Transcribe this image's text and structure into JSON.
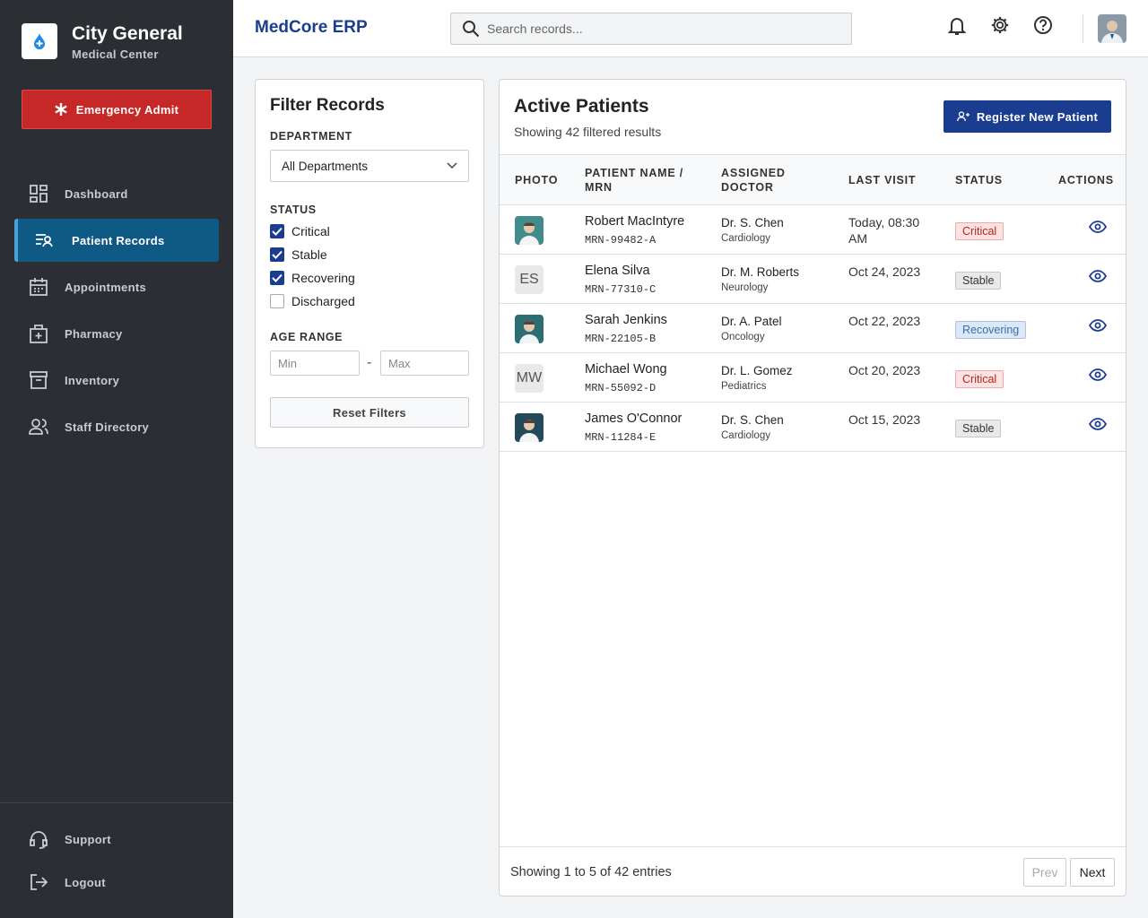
{
  "sidebar": {
    "brand_name": "City General",
    "brand_subtitle": "Medical Center",
    "emergency_button": "Emergency Admit",
    "nav": [
      {
        "label": "Dashboard",
        "active": false
      },
      {
        "label": "Patient Records",
        "active": true
      },
      {
        "label": "Appointments",
        "active": false
      },
      {
        "label": "Pharmacy",
        "active": false
      },
      {
        "label": "Inventory",
        "active": false
      },
      {
        "label": "Staff Directory",
        "active": false
      }
    ],
    "footer_nav": [
      "Support",
      "Logout"
    ]
  },
  "topbar": {
    "app_name": "MedCore ERP",
    "search_placeholder": "Search records..."
  },
  "filters": {
    "title": "Filter Records",
    "department_label": "DEPARTMENT",
    "department_value": "All Departments",
    "status_label": "STATUS",
    "statuses": [
      {
        "label": "Critical",
        "checked": true
      },
      {
        "label": "Stable",
        "checked": true
      },
      {
        "label": "Recovering",
        "checked": true
      },
      {
        "label": "Discharged",
        "checked": false
      }
    ],
    "age_label": "AGE RANGE",
    "age_min_placeholder": "Min",
    "age_separator": "-",
    "age_max_placeholder": "Max",
    "reset_button": "Reset Filters"
  },
  "patients": {
    "title": "Active Patients",
    "subtitle": "Showing 42 filtered results",
    "register_button": "Register New Patient",
    "columns": [
      "PHOTO",
      "PATIENT NAME / MRN",
      "ASSIGNED DOCTOR",
      "LAST VISIT",
      "STATUS",
      "ACTIONS"
    ],
    "rows": [
      {
        "photo_color": "#3f8c8a",
        "name": "Robert MacIntyre",
        "mrn": "MRN-99482-A",
        "doctor": "Dr. S. Chen",
        "department": "Cardiology",
        "last_visit": "Today, 08:30 AM",
        "status": "Critical",
        "status_bg": "#fde2e2",
        "status_fg": "#b3261e",
        "status_border": "#f3a6a6"
      },
      {
        "initials": "ES",
        "name": "Elena Silva",
        "mrn": "MRN-77310-C",
        "doctor": "Dr. M. Roberts",
        "department": "Neurology",
        "last_visit": "Oct 24, 2023",
        "status": "Stable",
        "status_bg": "#e8e9eb",
        "status_fg": "#333333",
        "status_border": "#c6c8cc"
      },
      {
        "photo_color": "#2c6e73",
        "name": "Sarah Jenkins",
        "mrn": "MRN-22105-B",
        "doctor": "Dr. A. Patel",
        "department": "Oncology",
        "last_visit": "Oct 22, 2023",
        "status": "Recovering",
        "status_bg": "#dce8f8",
        "status_fg": "#3a6ea5",
        "status_border": "#a9c4e8"
      },
      {
        "initials": "MW",
        "name": "Michael Wong",
        "mrn": "MRN-55092-D",
        "doctor": "Dr. L. Gomez",
        "department": "Pediatrics",
        "last_visit": "Oct 20, 2023",
        "status": "Critical",
        "status_bg": "#fde2e2",
        "status_fg": "#b3261e",
        "status_border": "#f3a6a6"
      },
      {
        "photo_color": "#24495a",
        "name": "James O'Connor",
        "mrn": "MRN-11284-E",
        "doctor": "Dr. S. Chen",
        "department": "Cardiology",
        "last_visit": "Oct 15, 2023",
        "status": "Stable",
        "status_bg": "#e8e9eb",
        "status_fg": "#333333",
        "status_border": "#c6c8cc"
      }
    ],
    "footer": "Showing 1 to 5 of 42 entries",
    "prev_button": "Prev",
    "next_button": "Next"
  }
}
